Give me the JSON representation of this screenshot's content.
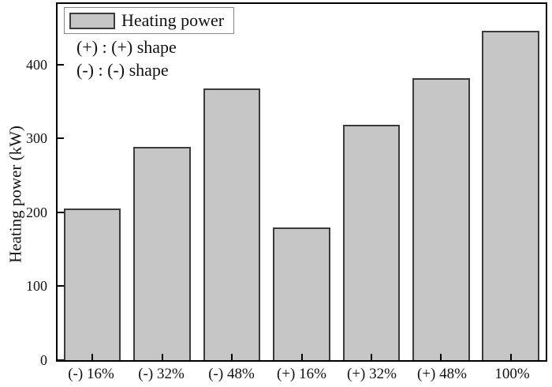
{
  "chart_data": {
    "type": "bar",
    "title": "",
    "categories": [
      "(-) 16%",
      "(-) 32%",
      "(-) 48%",
      "(+) 16%",
      "(+) 32%",
      "(+) 48%",
      "100%"
    ],
    "values": [
      205,
      289,
      368,
      180,
      319,
      382,
      446
    ],
    "series_name": "Heating power",
    "xlabel": "",
    "ylabel": "Heating power (kW)",
    "ylim": [
      0,
      482
    ],
    "yticks": [
      0,
      100,
      200,
      300,
      400
    ],
    "grid": false,
    "legend": {
      "position": "top-left",
      "entries": [
        "Heating power"
      ]
    },
    "annotations": {
      "line1": "(+) : (+) shape",
      "line2": "(-) : (-) shape"
    },
    "colors": {
      "bar_fill": "#c6c6c6",
      "bar_border": "#3b3b3b",
      "axis": "#000000",
      "text": "#111111",
      "legend_border": "#858585"
    }
  }
}
